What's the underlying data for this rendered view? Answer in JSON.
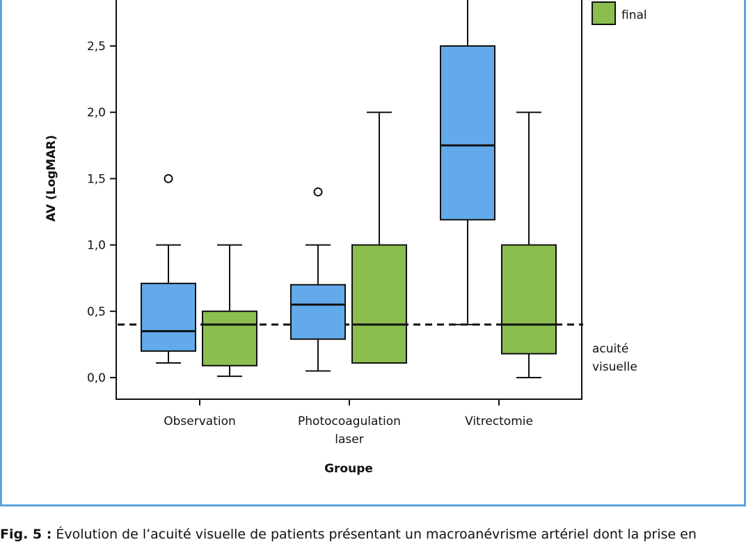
{
  "chart_data": {
    "type": "box",
    "ylabel": "AV (LogMAR)",
    "xlabel": "Groupe",
    "ylim": [
      -0.17,
      2.84
    ],
    "yticks": [
      "0,0",
      "0,5",
      "1,0",
      "1,5",
      "2,0",
      "2,5"
    ],
    "ytick_values": [
      0,
      0.5,
      1.0,
      1.5,
      2.0,
      2.5
    ],
    "categories": [
      "Observation",
      "Photocoagulation laser",
      "Vitrectomie"
    ],
    "category_labels": [
      [
        "Observation"
      ],
      [
        "Photocoagulation",
        "laser"
      ],
      [
        "Vitrectomie"
      ]
    ],
    "series": [
      {
        "name": "",
        "color": "#62aaea",
        "boxes": [
          {
            "min": 0.11,
            "q1": 0.2,
            "median": 0.35,
            "q3": 0.71,
            "max": 1.0,
            "outliers": [
              1.5
            ]
          },
          {
            "min": 0.05,
            "q1": 0.29,
            "median": 0.55,
            "q3": 0.7,
            "max": 1.0,
            "outliers": [
              1.4
            ]
          },
          {
            "min": 0.4,
            "q1": 1.19,
            "median": 1.75,
            "q3": 2.5,
            "max": 3.0,
            "outliers": []
          }
        ]
      },
      {
        "name": "final",
        "color": "#8bbd4f",
        "boxes": [
          {
            "min": 0.01,
            "q1": 0.09,
            "median": 0.4,
            "q3": 0.5,
            "max": 1.0,
            "outliers": []
          },
          {
            "min": 0.11,
            "q1": 0.11,
            "median": 0.4,
            "q3": 1.0,
            "max": 2.0,
            "outliers": []
          },
          {
            "min": 0.0,
            "q1": 0.18,
            "median": 0.4,
            "q3": 1.0,
            "max": 2.0,
            "outliers": []
          }
        ]
      }
    ],
    "reference_line": {
      "value": 0.4,
      "label_lines": [
        "acuité",
        "visuelle"
      ]
    },
    "legend": {
      "placement": "top-right",
      "entries": [
        "final"
      ]
    }
  },
  "caption": {
    "prefix": "Fig. 5 :",
    "text": " Évolution de l’acuité visuelle de patients présentant un macroanévrisme artériel dont la prise en"
  }
}
